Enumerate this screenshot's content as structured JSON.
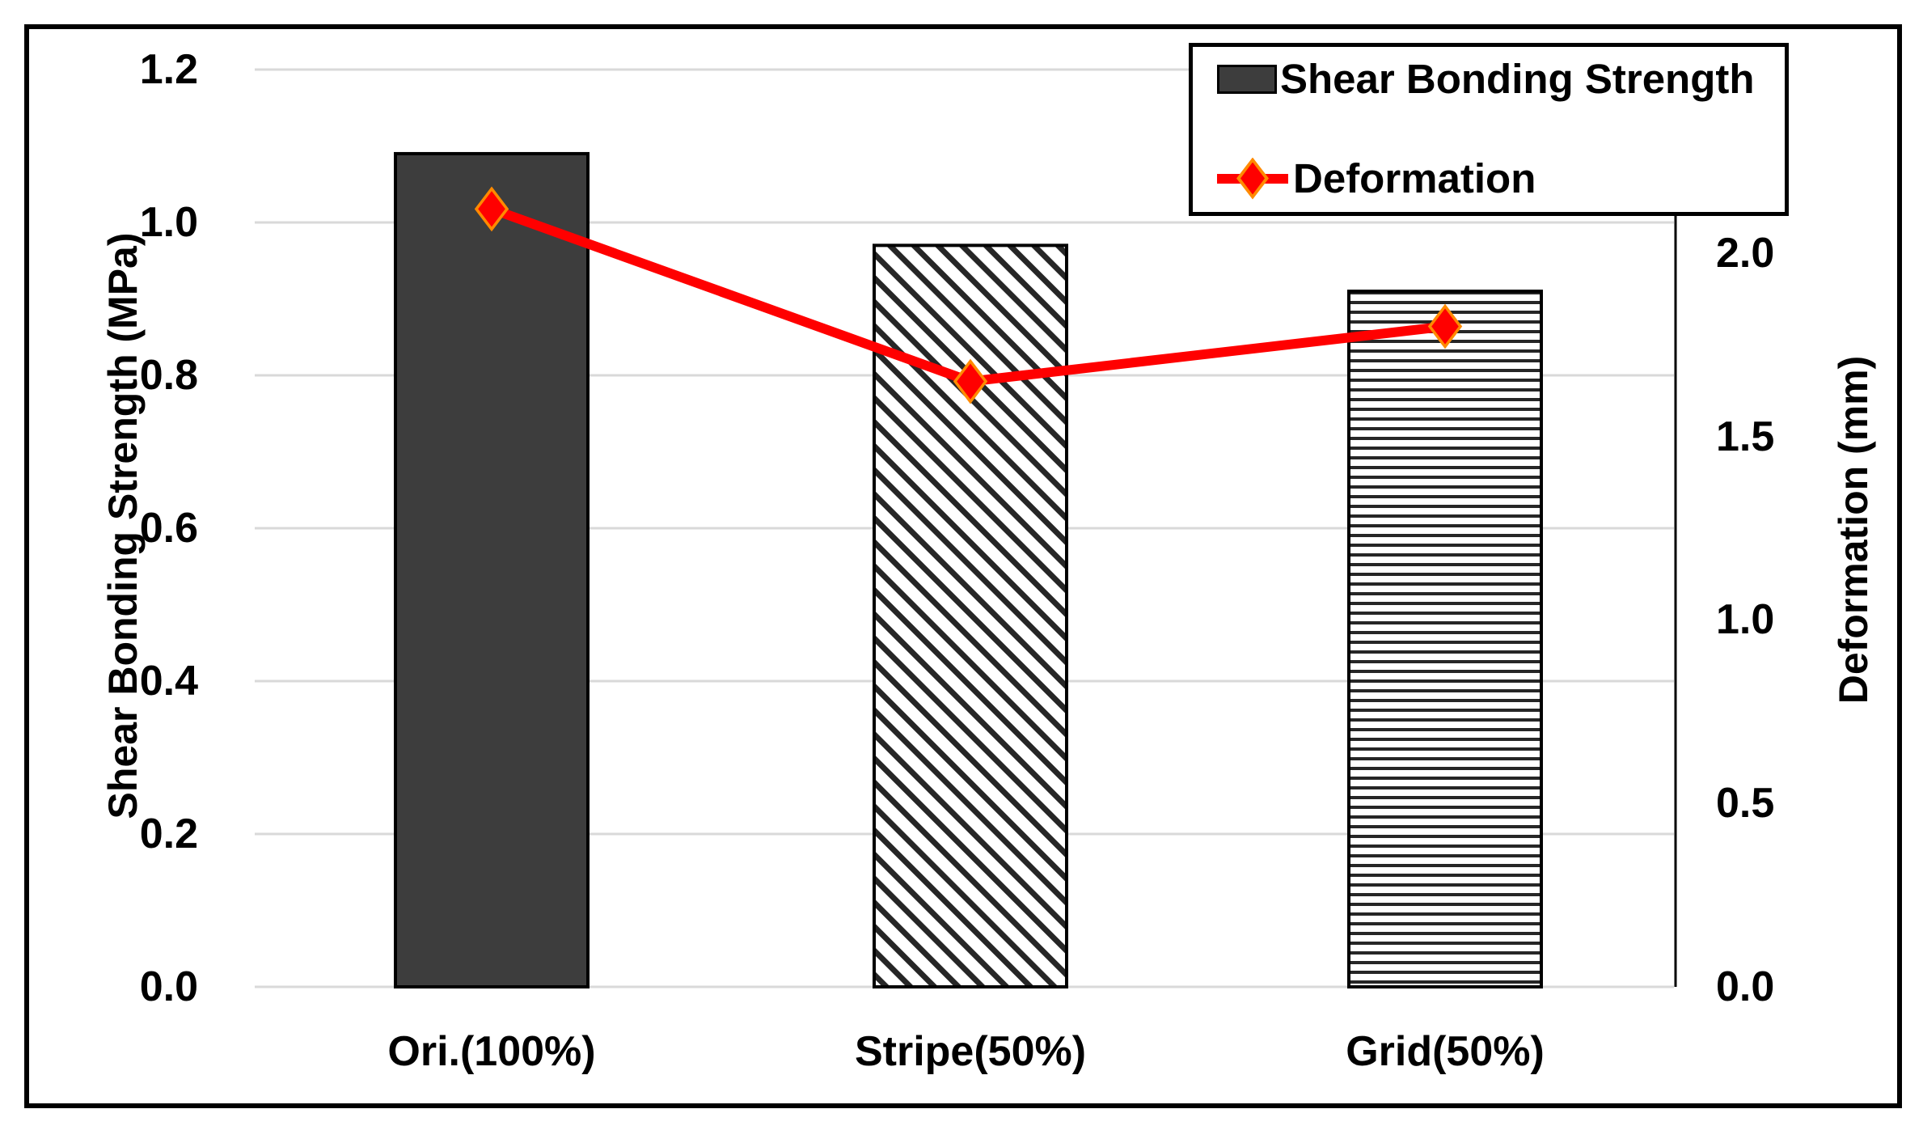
{
  "chart_data": {
    "type": "bar",
    "subtype": "bar+line dual-axis combo",
    "categories": [
      "Ori.(100%)",
      "Stripe(50%)",
      "Grid(50%)"
    ],
    "series": [
      {
        "name": "Shear Bonding Strength",
        "type": "bar",
        "axis": "left",
        "values": [
          1.09,
          0.97,
          0.91
        ],
        "bar_styles": [
          "solid-dark",
          "diagonal-hatch",
          "horizontal-hatch"
        ]
      },
      {
        "name": "Deformation",
        "type": "line",
        "axis": "right",
        "values": [
          2.12,
          1.65,
          1.8
        ],
        "marker": "diamond"
      }
    ],
    "left_axis": {
      "title": "Shear Bonding Strength (MPa)",
      "min": 0.0,
      "max": 1.2,
      "tick_labels": [
        "1.2",
        "1.0",
        "0.8",
        "0.6",
        "0.4",
        "0.2",
        "0.0"
      ],
      "tick_values": [
        1.2,
        1.0,
        0.8,
        0.6,
        0.4,
        0.2,
        0.0
      ]
    },
    "right_axis": {
      "title": "Deformation (mm)",
      "min": 0.0,
      "max": 2.5,
      "tick_labels": [
        "2.0",
        "1.5",
        "1.0",
        "0.5",
        "0.0"
      ],
      "tick_values": [
        2.0,
        1.5,
        1.0,
        0.5,
        0.0
      ]
    },
    "legend": {
      "position": "top-right",
      "entries": [
        "Shear Bonding Strength",
        "Deformation"
      ]
    },
    "grid": "horizontal",
    "colors": {
      "bar_fill_dark": "#3d3d3d",
      "bar_outline": "#000000",
      "hatch": "#262626",
      "line": "#ff0000",
      "marker_fill": "#ff0000",
      "marker_outline": "#ff8a00",
      "gridline": "#d9d9d9",
      "axis_line": "#000000",
      "border": "#000000",
      "background": "#ffffff",
      "text": "#000000"
    }
  }
}
